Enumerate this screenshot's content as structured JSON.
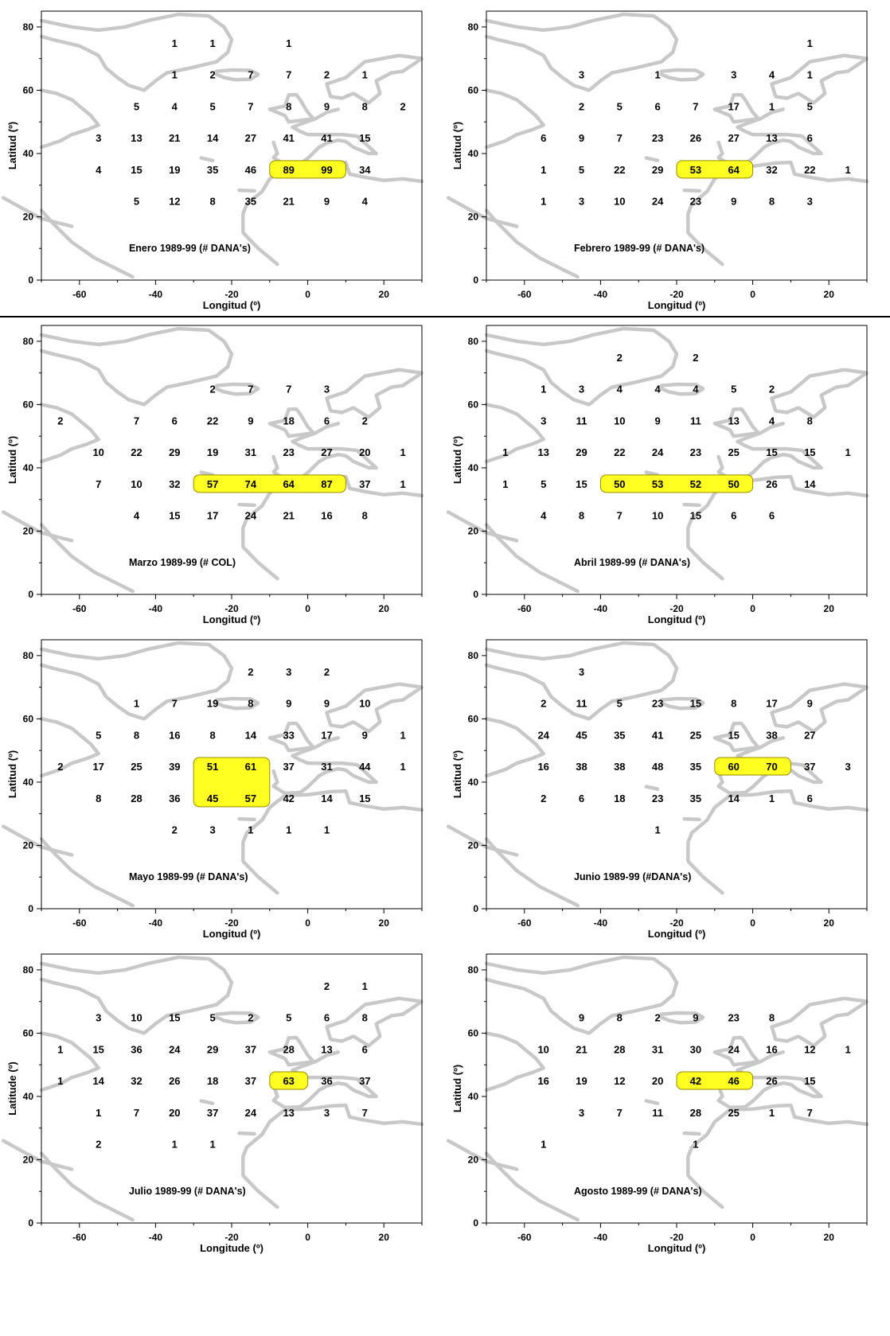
{
  "style": {
    "land_color": "#c8c8c8",
    "highlight_fill": "#ffff22",
    "highlight_stroke": "#9a8a00",
    "frame_color": "#000000"
  },
  "axes": {
    "lon_ticks": [
      -60,
      -40,
      -20,
      0,
      20
    ],
    "lat_ticks": [
      0,
      20,
      40,
      60,
      80
    ],
    "lon_range": [
      -70,
      30
    ],
    "lat_range": [
      0,
      85
    ]
  },
  "lon_grid": [
    -65,
    -55,
    -45,
    -35,
    -25,
    -15,
    -5,
    5,
    15,
    25
  ],
  "lat_grid": [
    75,
    65,
    55,
    45,
    35,
    25
  ],
  "panels": [
    {
      "title": "Enero 1989-99 (# DANA's)",
      "xlabel": "Longitud (º)",
      "ylabel": "Latitud (º)",
      "counts": [
        [
          "",
          "",
          "",
          "1",
          "1",
          "",
          "1",
          "",
          "",
          ""
        ],
        [
          "",
          "",
          "",
          "1",
          "2",
          "7",
          "7",
          "2",
          "1",
          ""
        ],
        [
          "",
          "",
          "5",
          "4",
          "5",
          "7",
          "8",
          "9",
          "8",
          "2"
        ],
        [
          "",
          "3",
          "13",
          "21",
          "14",
          "27",
          "41",
          "41",
          "15",
          ""
        ],
        [
          "",
          "4",
          "15",
          "19",
          "35",
          "46",
          "89",
          "99",
          "34",
          ""
        ],
        [
          "",
          "",
          "5",
          "12",
          "8",
          "35",
          "21",
          "9",
          "4",
          ""
        ]
      ],
      "highlights": [
        {
          "row": 4,
          "col_start": 6,
          "col_end": 7
        }
      ]
    },
    {
      "title": "Febrero 1989-99 (# DANA's)",
      "xlabel": "Longitud (º)",
      "ylabel": "Latitud (º)",
      "counts": [
        [
          "",
          "",
          "",
          "",
          "",
          "",
          "",
          "",
          "1",
          ""
        ],
        [
          "",
          "",
          "3",
          "",
          "1",
          "",
          "3",
          "4",
          "1",
          ""
        ],
        [
          "",
          "",
          "2",
          "5",
          "6",
          "7",
          "17",
          "1",
          "5",
          ""
        ],
        [
          "",
          "6",
          "9",
          "7",
          "23",
          "26",
          "27",
          "13",
          "6",
          ""
        ],
        [
          "",
          "1",
          "5",
          "22",
          "29",
          "53",
          "64",
          "32",
          "22",
          "1"
        ],
        [
          "",
          "1",
          "3",
          "10",
          "24",
          "23",
          "9",
          "8",
          "3",
          ""
        ]
      ],
      "highlights": [
        {
          "row": 4,
          "col_start": 5,
          "col_end": 6
        }
      ]
    },
    {
      "title": "Marzo 1989-99 (# COL)",
      "xlabel": "Longitud (º)",
      "ylabel": "Latitud (º)",
      "counts": [
        [
          "",
          "",
          "",
          "",
          "",
          "",
          "",
          "",
          "",
          ""
        ],
        [
          "",
          "",
          "",
          "",
          "2",
          "7",
          "7",
          "3",
          "",
          ""
        ],
        [
          "2",
          "",
          "7",
          "6",
          "22",
          "9",
          "18",
          "6",
          "2",
          ""
        ],
        [
          "",
          "10",
          "22",
          "29",
          "19",
          "31",
          "23",
          "27",
          "20",
          "1"
        ],
        [
          "",
          "7",
          "10",
          "32",
          "57",
          "74",
          "64",
          "87",
          "37",
          "1"
        ],
        [
          "",
          "",
          "4",
          "15",
          "17",
          "24",
          "21",
          "16",
          "8",
          ""
        ]
      ],
      "highlights": [
        {
          "row": 4,
          "col_start": 4,
          "col_end": 7
        }
      ]
    },
    {
      "title": "Abril 1989-99 (# DANA's)",
      "xlabel": "Longitud (º)",
      "ylabel": "Latitud (º)",
      "counts": [
        [
          "",
          "",
          "",
          "2",
          "",
          "2",
          "",
          "",
          "",
          ""
        ],
        [
          "",
          "1",
          "3",
          "4",
          "4",
          "4",
          "5",
          "2",
          "",
          ""
        ],
        [
          "",
          "3",
          "11",
          "10",
          "9",
          "11",
          "13",
          "4",
          "8",
          ""
        ],
        [
          "1",
          "13",
          "29",
          "22",
          "24",
          "23",
          "25",
          "15",
          "15",
          "1"
        ],
        [
          "1",
          "5",
          "15",
          "50",
          "53",
          "52",
          "50",
          "26",
          "14",
          ""
        ],
        [
          "",
          "4",
          "8",
          "7",
          "10",
          "15",
          "6",
          "6",
          "",
          ""
        ]
      ],
      "highlights": [
        {
          "row": 4,
          "col_start": 3,
          "col_end": 6
        }
      ]
    },
    {
      "title": "Mayo 1989-99 (# DANA's)",
      "xlabel": "Longitud (º)",
      "ylabel": "Latitud (º)",
      "counts": [
        [
          "",
          "",
          "",
          "",
          "",
          "2",
          "3",
          "2",
          "",
          ""
        ],
        [
          "",
          "",
          "1",
          "7",
          "19",
          "8",
          "9",
          "9",
          "10",
          ""
        ],
        [
          "",
          "5",
          "8",
          "16",
          "8",
          "14",
          "33",
          "17",
          "9",
          "1"
        ],
        [
          "2",
          "17",
          "25",
          "39",
          "51",
          "61",
          "37",
          "31",
          "44",
          "1"
        ],
        [
          "",
          "8",
          "28",
          "36",
          "45",
          "57",
          "42",
          "14",
          "15",
          ""
        ],
        [
          "",
          "",
          "",
          "2",
          "3",
          "1",
          "1",
          "1",
          "",
          ""
        ]
      ],
      "highlights": [
        {
          "row": 3,
          "col_start": 4,
          "col_end": 5,
          "row_end": 4
        }
      ]
    },
    {
      "title": "Junio 1989-99 (#DANA's)",
      "xlabel": "Longitud (º)",
      "ylabel": "Latitud (º)",
      "counts": [
        [
          "",
          "",
          "3",
          "",
          "",
          "",
          "",
          "",
          "",
          ""
        ],
        [
          "",
          "2",
          "11",
          "5",
          "23",
          "15",
          "8",
          "17",
          "9",
          ""
        ],
        [
          "",
          "24",
          "45",
          "35",
          "41",
          "25",
          "15",
          "38",
          "27",
          ""
        ],
        [
          "",
          "16",
          "38",
          "38",
          "48",
          "35",
          "60",
          "70",
          "37",
          "3"
        ],
        [
          "",
          "2",
          "6",
          "18",
          "23",
          "35",
          "14",
          "1",
          "6",
          ""
        ],
        [
          "",
          "",
          "",
          "",
          "1",
          "",
          "",
          "",
          "",
          ""
        ]
      ],
      "highlights": [
        {
          "row": 3,
          "col_start": 6,
          "col_end": 7
        }
      ]
    },
    {
      "title": "Julio 1989-99 (# DANA's)",
      "xlabel": "Longitude (º)",
      "ylabel": "Latitude (º)",
      "counts": [
        [
          "",
          "",
          "",
          "",
          "",
          "",
          "",
          "2",
          "1",
          ""
        ],
        [
          "",
          "3",
          "10",
          "15",
          "5",
          "2",
          "5",
          "6",
          "8",
          ""
        ],
        [
          "1",
          "15",
          "36",
          "24",
          "29",
          "37",
          "28",
          "13",
          "6",
          ""
        ],
        [
          "1",
          "14",
          "32",
          "26",
          "18",
          "37",
          "63",
          "36",
          "37",
          ""
        ],
        [
          "",
          "1",
          "7",
          "20",
          "37",
          "24",
          "13",
          "3",
          "7",
          ""
        ],
        [
          "",
          "2",
          "",
          "1",
          "1",
          "",
          "",
          "",
          "",
          ""
        ]
      ],
      "highlights": [
        {
          "row": 3,
          "col_start": 6,
          "col_end": 6
        }
      ]
    },
    {
      "title": "Agosto 1989-99 (# DANA's)",
      "xlabel": "Longitud (º)",
      "ylabel": "Latitud (º)",
      "counts": [
        [
          "",
          "",
          "",
          "",
          "",
          "",
          "",
          "",
          "",
          ""
        ],
        [
          "",
          "",
          "9",
          "8",
          "2",
          "9",
          "23",
          "8",
          "",
          ""
        ],
        [
          "",
          "10",
          "21",
          "28",
          "31",
          "30",
          "24",
          "16",
          "12",
          "1"
        ],
        [
          "",
          "16",
          "19",
          "12",
          "20",
          "42",
          "46",
          "26",
          "15",
          ""
        ],
        [
          "",
          "",
          "3",
          "7",
          "11",
          "28",
          "25",
          "1",
          "7",
          ""
        ],
        [
          "",
          "1",
          "",
          "",
          "",
          "1",
          "",
          "",
          "",
          ""
        ]
      ],
      "highlights": [
        {
          "row": 3,
          "col_start": 5,
          "col_end": 6
        }
      ]
    }
  ]
}
